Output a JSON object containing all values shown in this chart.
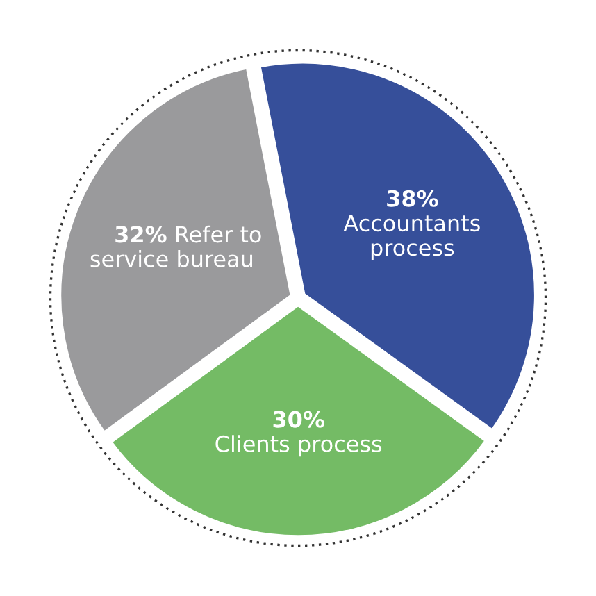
{
  "chart_data": {
    "type": "pie",
    "categories": [
      "Accountants process",
      "Clients process",
      "Refer to service bureau"
    ],
    "values": [
      38,
      30,
      32
    ],
    "colors": [
      "#364f9a",
      "#74bb65",
      "#9a9a9c"
    ],
    "value_labels": [
      "38%",
      "30%",
      "32%"
    ]
  }
}
